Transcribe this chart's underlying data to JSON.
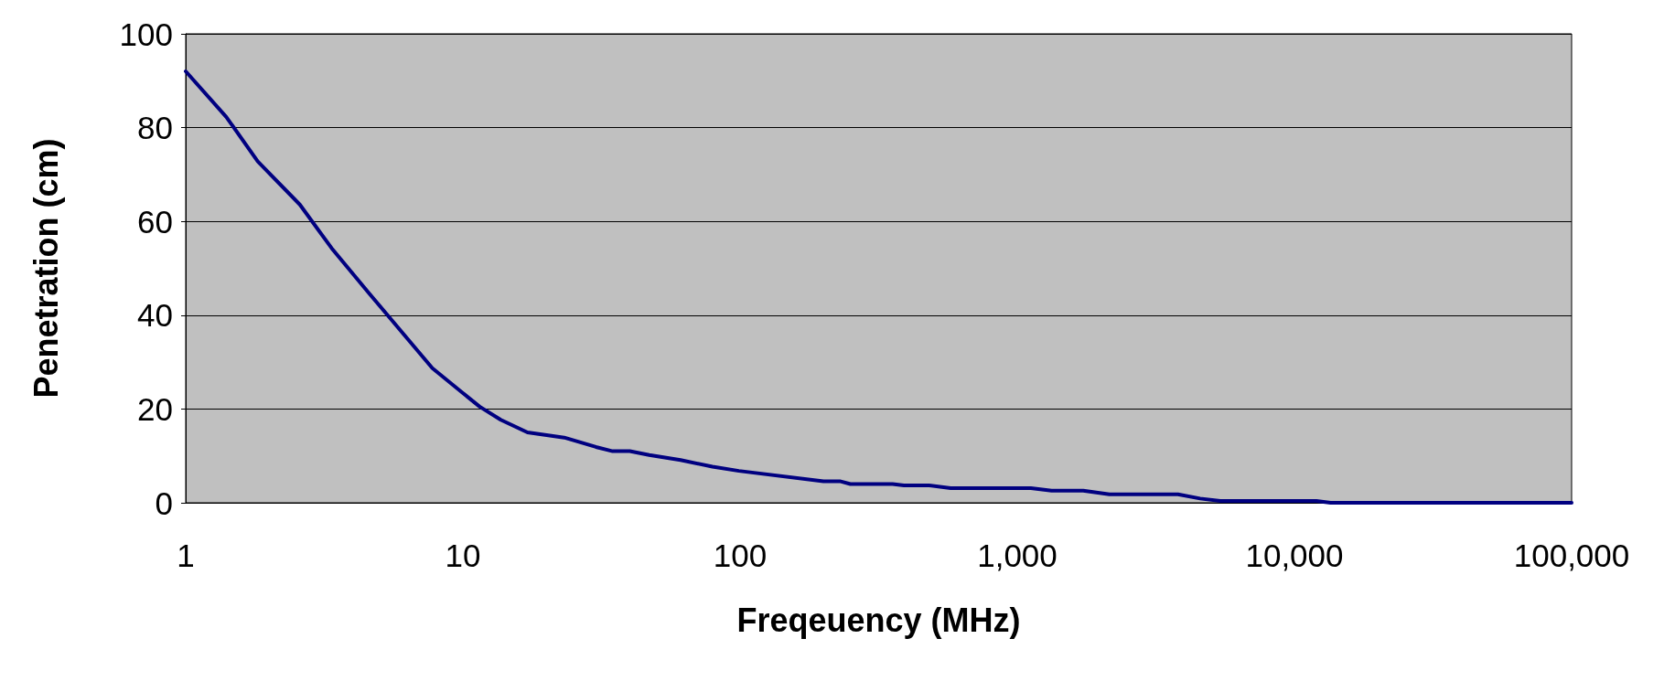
{
  "chart_data": {
    "type": "line",
    "xlabel": "Freqeuency (MHz)",
    "ylabel": "Penetration (cm)",
    "log": "x",
    "xlim": [
      1,
      100000
    ],
    "xticks": [
      1,
      10,
      100,
      {
        "value": 1000,
        "label": "1,000"
      },
      {
        "value": 10000,
        "label": "10,000"
      },
      {
        "value": 100000,
        "label": "100,000"
      }
    ],
    "ylim": [
      0,
      100
    ],
    "yticks": [
      0,
      20,
      40,
      60,
      80,
      100
    ],
    "grid": "y",
    "marker": "none",
    "line_style": "solid",
    "series": [
      {
        "color": "#000080",
        "x": [
          1,
          1.4,
          1.82,
          2.58,
          3.36,
          4.57,
          7.76,
          10,
          11.5,
          13.7,
          17.1,
          23.2,
          30.2,
          34.7,
          40,
          47,
          61,
          79.5,
          99,
          200,
          229,
          250,
          355,
          390,
          480,
          575,
          1120,
          1330,
          1730,
          2150,
          3800,
          4570,
          5400,
          12000,
          13500,
          100000
        ],
        "values": [
          92,
          82.3,
          72.8,
          63.6,
          54.3,
          44.8,
          28.7,
          23.4,
          20.5,
          17.7,
          15,
          13.9,
          11.9,
          11,
          11,
          10.2,
          9.1,
          7.7,
          6.8,
          4.6,
          4.6,
          4,
          4,
          3.7,
          3.7,
          3.1,
          3.1,
          2.6,
          2.6,
          1.8,
          1.8,
          0.9,
          0.4,
          0.4,
          0,
          0
        ]
      }
    ]
  }
}
